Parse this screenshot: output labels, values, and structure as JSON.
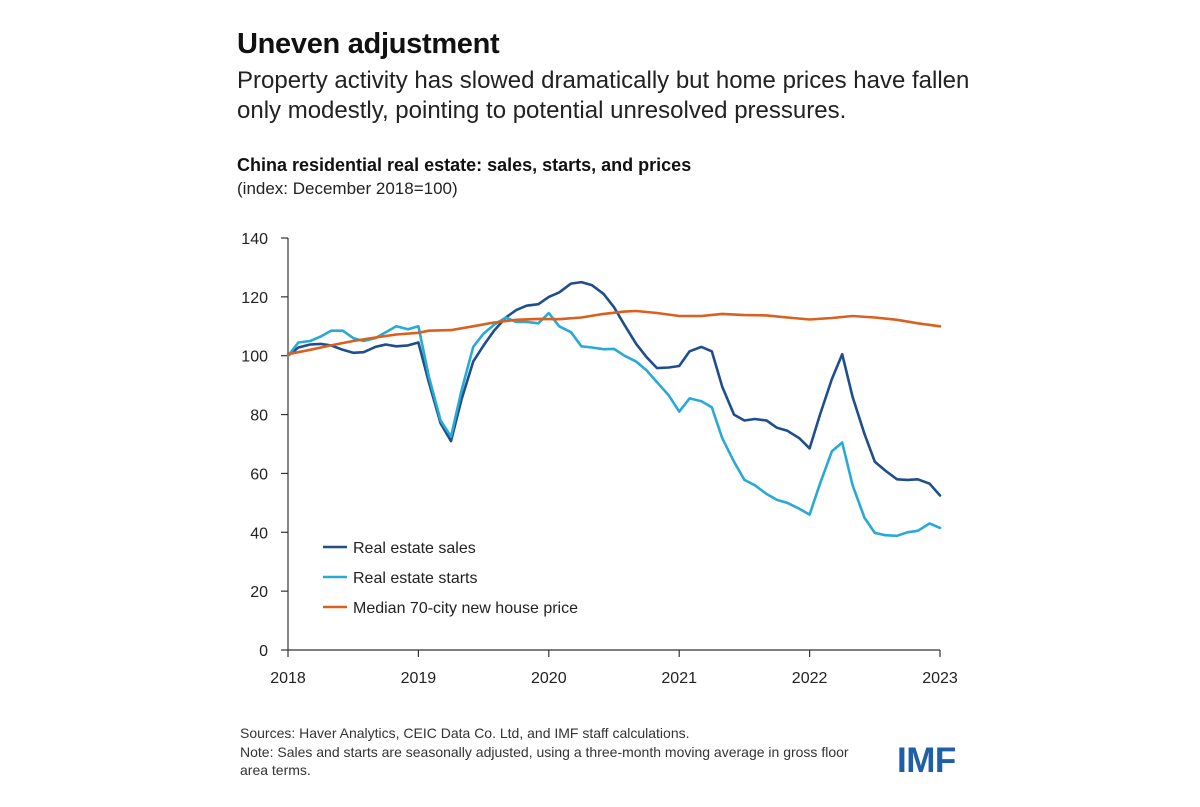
{
  "header": {
    "headline": "Uneven adjustment",
    "subhead": "Property activity has slowed dramatically but home prices have fallen only modestly, pointing to potential unresolved pressures."
  },
  "chart_data": {
    "type": "line",
    "title": "China residential real estate: sales, starts, and prices",
    "subtitle": "(index: December 2018=100)",
    "xlabel": "",
    "ylabel": "",
    "xlim": [
      2018,
      2023
    ],
    "ylim": [
      0,
      140
    ],
    "yticks": [
      0,
      20,
      40,
      60,
      80,
      100,
      120,
      140
    ],
    "xticks": [
      {
        "value": 2018,
        "label": "2018"
      },
      {
        "value": 2019,
        "label": "2019"
      },
      {
        "value": 2020,
        "label": "2020"
      },
      {
        "value": 2021,
        "label": "2021"
      },
      {
        "value": 2022,
        "label": "2022"
      },
      {
        "value": 2023,
        "label": "2023"
      }
    ],
    "grid": false,
    "legend_position": "bottom-left",
    "series": [
      {
        "name": "Real estate sales",
        "color": "#1f4e8c",
        "points": [
          [
            2018.0,
            100
          ],
          [
            2018.08,
            102.8
          ],
          [
            2018.17,
            103.8
          ],
          [
            2018.25,
            104
          ],
          [
            2018.33,
            103.5
          ],
          [
            2018.42,
            102
          ],
          [
            2018.5,
            101
          ],
          [
            2018.58,
            101.2
          ],
          [
            2018.67,
            103
          ],
          [
            2018.75,
            103.8
          ],
          [
            2018.83,
            103.2
          ],
          [
            2018.92,
            103.5
          ],
          [
            2019.0,
            104.5
          ],
          [
            2019.08,
            91
          ],
          [
            2019.17,
            77
          ],
          [
            2019.25,
            71
          ],
          [
            2019.33,
            85
          ],
          [
            2019.42,
            98
          ],
          [
            2019.5,
            103.5
          ],
          [
            2019.58,
            108.5
          ],
          [
            2019.67,
            113
          ],
          [
            2019.75,
            115.5
          ],
          [
            2019.83,
            117
          ],
          [
            2019.92,
            117.5
          ],
          [
            2020.0,
            120
          ],
          [
            2020.08,
            121.5
          ],
          [
            2020.17,
            124.5
          ],
          [
            2020.25,
            125
          ],
          [
            2020.33,
            124
          ],
          [
            2020.42,
            121
          ],
          [
            2020.5,
            116.5
          ],
          [
            2020.58,
            110.5
          ],
          [
            2020.67,
            104
          ],
          [
            2020.75,
            99.5
          ],
          [
            2020.83,
            95.8
          ],
          [
            2020.92,
            96
          ],
          [
            2021.0,
            96.5
          ],
          [
            2021.08,
            101.5
          ],
          [
            2021.17,
            103
          ],
          [
            2021.25,
            101.5
          ],
          [
            2021.33,
            89.5
          ],
          [
            2021.42,
            80
          ],
          [
            2021.5,
            78
          ],
          [
            2021.58,
            78.5
          ],
          [
            2021.67,
            78
          ],
          [
            2021.75,
            75.5
          ],
          [
            2021.83,
            74.5
          ],
          [
            2021.92,
            72
          ],
          [
            2022.0,
            68.5
          ],
          [
            2022.08,
            80
          ],
          [
            2022.17,
            92
          ],
          [
            2022.25,
            100.5
          ],
          [
            2022.33,
            86
          ],
          [
            2022.42,
            73.5
          ],
          [
            2022.5,
            64
          ],
          [
            2022.58,
            61
          ],
          [
            2022.67,
            58
          ],
          [
            2022.75,
            57.8
          ],
          [
            2022.83,
            58
          ],
          [
            2022.92,
            56.5
          ],
          [
            2023.0,
            52.5
          ]
        ]
      },
      {
        "name": "Real estate starts",
        "color": "#29a9d6",
        "points": [
          [
            2018.0,
            100
          ],
          [
            2018.08,
            104.5
          ],
          [
            2018.17,
            105
          ],
          [
            2018.25,
            106.5
          ],
          [
            2018.33,
            108.5
          ],
          [
            2018.42,
            108.5
          ],
          [
            2018.5,
            106
          ],
          [
            2018.58,
            105
          ],
          [
            2018.67,
            106
          ],
          [
            2018.75,
            108
          ],
          [
            2018.83,
            110
          ],
          [
            2018.92,
            109
          ],
          [
            2019.0,
            110
          ],
          [
            2019.08,
            93
          ],
          [
            2019.17,
            78
          ],
          [
            2019.25,
            72.5
          ],
          [
            2019.33,
            88
          ],
          [
            2019.42,
            103
          ],
          [
            2019.5,
            107.5
          ],
          [
            2019.58,
            110.5
          ],
          [
            2019.67,
            113
          ],
          [
            2019.75,
            111.5
          ],
          [
            2019.83,
            111.5
          ],
          [
            2019.92,
            111
          ],
          [
            2020.0,
            114.5
          ],
          [
            2020.08,
            110
          ],
          [
            2020.17,
            108
          ],
          [
            2020.25,
            103.2
          ],
          [
            2020.33,
            102.8
          ],
          [
            2020.42,
            102.2
          ],
          [
            2020.5,
            102.3
          ],
          [
            2020.58,
            100
          ],
          [
            2020.67,
            98
          ],
          [
            2020.75,
            95
          ],
          [
            2020.83,
            91
          ],
          [
            2020.92,
            86.5
          ],
          [
            2021.0,
            81
          ],
          [
            2021.08,
            85.5
          ],
          [
            2021.17,
            84.5
          ],
          [
            2021.25,
            82.5
          ],
          [
            2021.33,
            72
          ],
          [
            2021.42,
            64
          ],
          [
            2021.5,
            57.8
          ],
          [
            2021.58,
            56
          ],
          [
            2021.67,
            53
          ],
          [
            2021.75,
            51
          ],
          [
            2021.83,
            50
          ],
          [
            2021.92,
            48
          ],
          [
            2022.0,
            46
          ],
          [
            2022.08,
            56.5
          ],
          [
            2022.17,
            67.5
          ],
          [
            2022.25,
            70.5
          ],
          [
            2022.33,
            56
          ],
          [
            2022.42,
            45
          ],
          [
            2022.5,
            39.8
          ],
          [
            2022.58,
            39
          ],
          [
            2022.67,
            38.8
          ],
          [
            2022.75,
            40
          ],
          [
            2022.83,
            40.5
          ],
          [
            2022.92,
            43
          ],
          [
            2023.0,
            41.5
          ]
        ]
      },
      {
        "name": "Median 70-city new house price",
        "color": "#d9601f",
        "points": [
          [
            2018.0,
            100.5
          ],
          [
            2018.17,
            102
          ],
          [
            2018.33,
            103.5
          ],
          [
            2018.5,
            105
          ],
          [
            2018.67,
            106.2
          ],
          [
            2018.83,
            107.2
          ],
          [
            2019.0,
            107.8
          ],
          [
            2019.08,
            108.5
          ],
          [
            2019.25,
            108.7
          ],
          [
            2019.42,
            110
          ],
          [
            2019.58,
            111.3
          ],
          [
            2019.75,
            112.2
          ],
          [
            2019.92,
            112.5
          ],
          [
            2020.08,
            112.4
          ],
          [
            2020.25,
            113
          ],
          [
            2020.42,
            114.2
          ],
          [
            2020.58,
            115
          ],
          [
            2020.67,
            115.2
          ],
          [
            2020.83,
            114.5
          ],
          [
            2021.0,
            113.5
          ],
          [
            2021.17,
            113.5
          ],
          [
            2021.33,
            114.2
          ],
          [
            2021.5,
            113.8
          ],
          [
            2021.67,
            113.7
          ],
          [
            2021.83,
            113
          ],
          [
            2022.0,
            112.3
          ],
          [
            2022.17,
            112.8
          ],
          [
            2022.33,
            113.5
          ],
          [
            2022.5,
            113
          ],
          [
            2022.67,
            112.2
          ],
          [
            2022.83,
            111
          ],
          [
            2023.0,
            110
          ]
        ]
      }
    ]
  },
  "footer": {
    "sources": "Sources: Haver Analytics, CEIC Data Co. Ltd, and IMF staff calculations.",
    "note": "Note: Sales and starts are seasonally adjusted, using a three-month moving average in gross floor area terms.",
    "logo": "IMF"
  },
  "colors": {
    "axis": "#333333",
    "text": "#1a1a1a",
    "logo": "#1f5fa8"
  }
}
